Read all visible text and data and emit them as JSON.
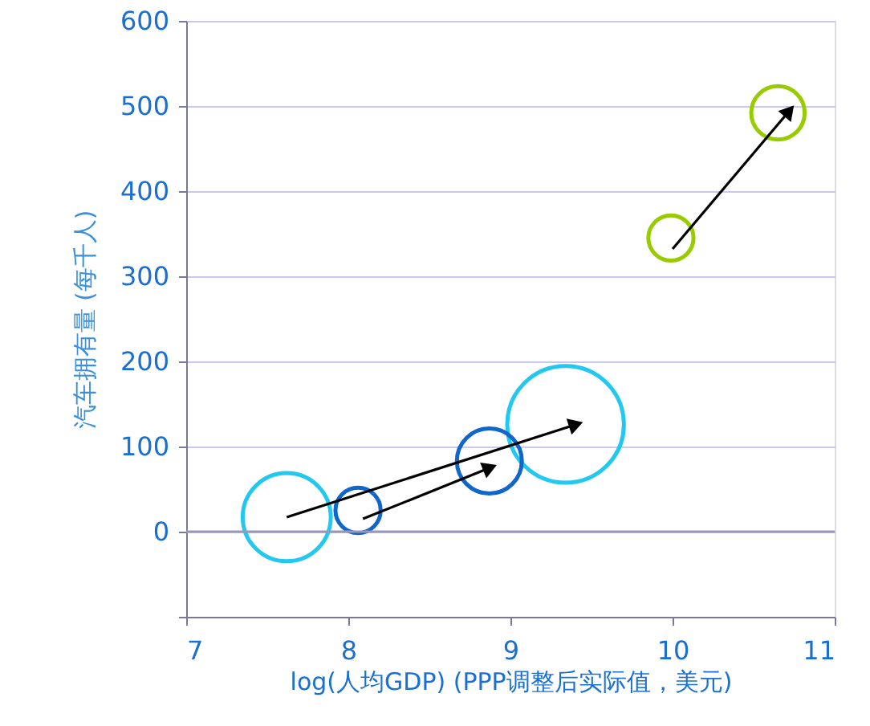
{
  "chart_data": {
    "type": "bubble",
    "xlabel": "log(人均GDP) (PPP调整后实际值，美元)",
    "ylabel": "汽车拥有量 (每千人)",
    "xlim": [
      7,
      11
    ],
    "xticks": [
      7,
      8,
      9,
      10,
      11
    ],
    "ylim": [
      -100,
      600
    ],
    "yticks": [
      {
        "value": -100,
        "label": null
      },
      0,
      100,
      200,
      300,
      400,
      500,
      600
    ],
    "grid": "y",
    "ref_lines": [
      {
        "axis": "y",
        "value": 0,
        "color": "#9a98b8"
      }
    ],
    "series": [
      {
        "color": "#22c8f0",
        "x": [
          7.62,
          9.34
        ],
        "values": [
          17,
          126
        ],
        "sizes": [
          0.57,
          1
        ]
      },
      {
        "color": "#1166cc",
        "x": [
          8.06,
          8.87
        ],
        "values": [
          25,
          83
        ],
        "sizes": [
          0.15,
          0.31
        ]
      },
      {
        "color": "#99cc00",
        "x": [
          9.99,
          10.65
        ],
        "values": [
          345,
          492
        ],
        "sizes": [
          0.15,
          0.21
        ]
      },
      {
        "type": "line",
        "color": "#000000",
        "line_style": "solid",
        "x": [
          7.62,
          9.39
        ],
        "values": [
          17,
          125
        ]
      },
      {
        "type": "line",
        "color": "#000000",
        "line_style": "solid",
        "x": [
          8.09,
          8.86
        ],
        "values": [
          15,
          74
        ]
      },
      {
        "type": "line",
        "color": "#000000",
        "line_style": "solid",
        "x": [
          10.0,
          10.71
        ],
        "values": [
          332,
          492
        ]
      }
    ]
  }
}
